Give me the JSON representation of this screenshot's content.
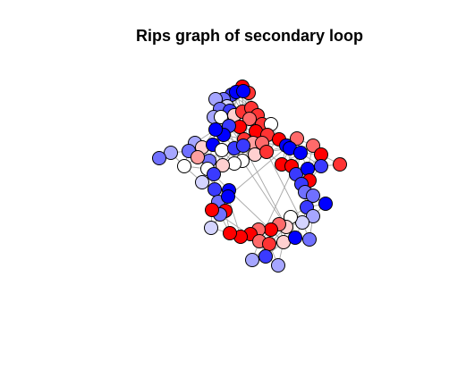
{
  "title": "Rips graph of secondary loop",
  "colors": {
    "edge": "#a8a8a8",
    "node_stroke": "#000000",
    "palette": [
      "#0000ff",
      "#3a3aff",
      "#7070ff",
      "#a6a6ff",
      "#d4d4ff",
      "#ffffff",
      "#ffd0d0",
      "#ff9f9f",
      "#ff6a6a",
      "#ff3333",
      "#ff0000"
    ]
  }
}
